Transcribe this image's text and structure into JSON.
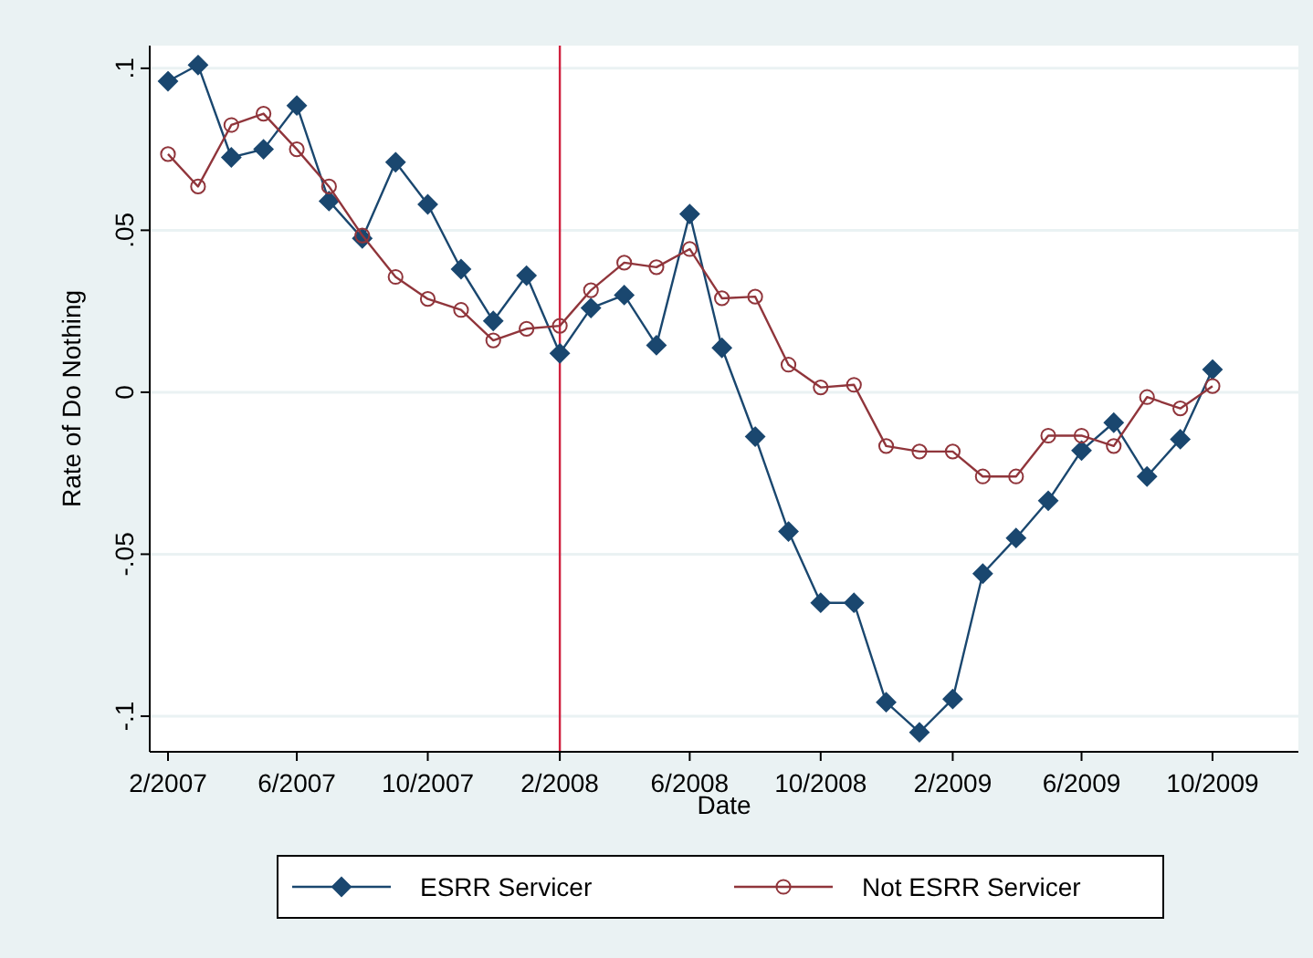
{
  "chart_data": {
    "type": "line",
    "xlabel": "Date",
    "ylabel": "Rate of Do Nothing",
    "x": [
      "2007-02",
      "2007-03",
      "2007-04",
      "2007-05",
      "2007-06",
      "2007-07",
      "2007-08",
      "2007-09",
      "2007-10",
      "2007-11",
      "2007-12",
      "2008-01",
      "2008-02",
      "2008-03",
      "2008-04",
      "2008-05",
      "2008-06",
      "2008-07",
      "2008-08",
      "2008-09",
      "2008-10",
      "2008-11",
      "2008-12",
      "2009-01",
      "2009-02",
      "2009-03",
      "2009-04",
      "2009-05",
      "2009-06",
      "2009-07",
      "2009-08",
      "2009-09",
      "2009-10"
    ],
    "series": [
      {
        "name": "ESRR Servicer",
        "color": "#1a476f",
        "marker": "diamond",
        "values": [
          0.096,
          0.101,
          0.0725,
          0.075,
          0.0885,
          0.059,
          0.0475,
          0.071,
          0.058,
          0.038,
          0.022,
          0.036,
          0.012,
          0.026,
          0.03,
          0.0145,
          0.055,
          0.0137,
          -0.0137,
          -0.043,
          -0.065,
          -0.065,
          -0.0957,
          -0.105,
          -0.0947,
          -0.056,
          -0.045,
          -0.0335,
          -0.018,
          -0.0094,
          -0.026,
          -0.0145,
          0.007
        ]
      },
      {
        "name": "Not ESRR Servicer",
        "color": "#90353b",
        "marker": "circle",
        "values": [
          0.0735,
          0.0635,
          0.0825,
          0.086,
          0.075,
          0.0635,
          0.0484,
          0.0356,
          0.0288,
          0.0254,
          0.016,
          0.0196,
          0.0205,
          0.0315,
          0.04,
          0.0386,
          0.0442,
          0.029,
          0.0295,
          0.0085,
          0.0015,
          0.0023,
          -0.0166,
          -0.0183,
          -0.0183,
          -0.026,
          -0.026,
          -0.0134,
          -0.0134,
          -0.0166,
          -0.0015,
          -0.005,
          0.0019
        ]
      }
    ],
    "xlim": [
      "2007-01-15",
      "2009-12-20"
    ],
    "xticks": [
      {
        "value": "2007-02",
        "label": "2/2007"
      },
      {
        "value": "2007-06",
        "label": "6/2007"
      },
      {
        "value": "2007-10",
        "label": "10/2007"
      },
      {
        "value": "2008-02",
        "label": "2/2008"
      },
      {
        "value": "2008-06",
        "label": "6/2008"
      },
      {
        "value": "2008-10",
        "label": "10/2008"
      },
      {
        "value": "2009-02",
        "label": "2/2009"
      },
      {
        "value": "2009-06",
        "label": "6/2009"
      },
      {
        "value": "2009-10",
        "label": "10/2009"
      }
    ],
    "ylim": [
      -0.111,
      0.107
    ],
    "yticks": [
      {
        "value": 0.1,
        "label": ".1"
      },
      {
        "value": 0.05,
        "label": ".05"
      },
      {
        "value": 0,
        "label": "0"
      },
      {
        "value": -0.05,
        "label": "-.05"
      },
      {
        "value": -0.1,
        "label": "-.1"
      }
    ],
    "grid": "y",
    "legend": "bottom",
    "line_style": "solid",
    "ref_lines": [
      {
        "axis": "x",
        "value": "2008-02",
        "color": "#d0223f"
      }
    ]
  }
}
